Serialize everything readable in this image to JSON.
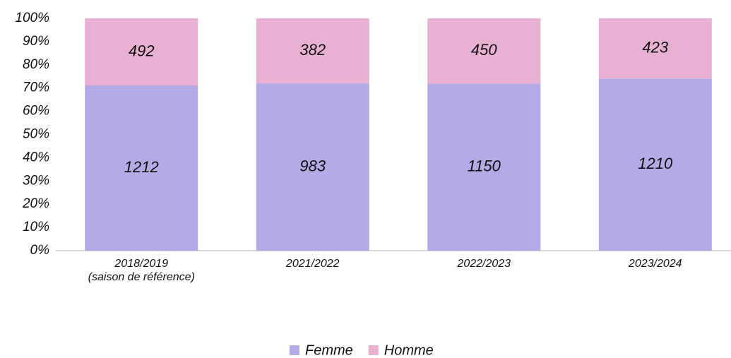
{
  "chart_data": {
    "type": "bar",
    "stacked": "percent",
    "categories": [
      "2018/2019\n(saison de référence)",
      "2021/2022",
      "2022/2023",
      "2023/2024"
    ],
    "series": [
      {
        "name": "Femme",
        "color": "#b3aae6",
        "values": [
          1212,
          983,
          1150,
          1210
        ]
      },
      {
        "name": "Homme",
        "color": "#e8b0d2",
        "values": [
          492,
          382,
          450,
          423
        ]
      }
    ],
    "ylim": [
      0,
      100
    ],
    "yticks": [
      {
        "value": 0,
        "label": "0%"
      },
      {
        "value": 10,
        "label": "10%"
      },
      {
        "value": 20,
        "label": "20%"
      },
      {
        "value": 30,
        "label": "30%"
      },
      {
        "value": 40,
        "label": "40%"
      },
      {
        "value": 50,
        "label": "50%"
      },
      {
        "value": 60,
        "label": "60%"
      },
      {
        "value": 70,
        "label": "70%"
      },
      {
        "value": 80,
        "label": "80%"
      },
      {
        "value": 90,
        "label": "90%"
      },
      {
        "value": 100,
        "label": "100%"
      }
    ],
    "grid": false,
    "legend": "bottom"
  }
}
